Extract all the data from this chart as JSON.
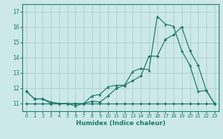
{
  "xlabel": "Humidex (Indice chaleur)",
  "background_color": "#cce8e8",
  "grid_color": "#aacccc",
  "line_color": "#1a7a6a",
  "xlim": [
    -0.5,
    23.5
  ],
  "ylim": [
    10.5,
    17.5
  ],
  "yticks": [
    11,
    12,
    13,
    14,
    15,
    16,
    17
  ],
  "xticks": [
    0,
    1,
    2,
    3,
    4,
    5,
    6,
    7,
    8,
    9,
    10,
    11,
    12,
    13,
    14,
    15,
    16,
    17,
    18,
    19,
    20,
    21,
    22,
    23
  ],
  "line1_x": [
    0,
    1,
    2,
    3,
    4,
    5,
    6,
    7,
    8,
    9,
    10,
    11,
    12,
    13,
    14,
    15,
    16,
    17,
    18,
    19,
    20,
    21,
    22,
    23
  ],
  "line1_y": [
    11.8,
    11.3,
    11.3,
    11.0,
    11.0,
    11.0,
    10.85,
    11.0,
    11.5,
    11.6,
    12.1,
    12.2,
    12.2,
    13.1,
    13.3,
    13.2,
    16.7,
    16.2,
    16.05,
    14.45,
    13.5,
    11.8,
    11.85,
    11.0
  ],
  "line2_x": [
    0,
    1,
    2,
    3,
    4,
    5,
    6,
    7,
    8,
    9,
    10,
    11,
    12,
    13,
    14,
    15,
    16,
    17,
    18,
    19,
    20,
    21,
    22,
    23
  ],
  "line2_y": [
    11.8,
    11.3,
    11.3,
    11.1,
    11.0,
    11.0,
    11.0,
    11.0,
    11.15,
    11.1,
    11.5,
    12.0,
    12.2,
    12.5,
    12.8,
    14.1,
    14.1,
    15.2,
    15.5,
    16.0,
    14.45,
    13.5,
    11.85,
    11.0
  ],
  "line3_x": [
    0,
    1,
    2,
    3,
    4,
    5,
    6,
    7,
    8,
    9,
    10,
    11,
    12,
    13,
    14,
    15,
    16,
    17,
    18,
    19,
    20,
    21,
    22,
    23
  ],
  "line3_y": [
    11.0,
    11.0,
    11.0,
    11.0,
    11.0,
    11.0,
    11.0,
    11.0,
    11.0,
    11.0,
    11.0,
    11.0,
    11.0,
    11.0,
    11.0,
    11.0,
    11.0,
    11.0,
    11.0,
    11.0,
    11.0,
    11.0,
    11.0,
    11.0
  ]
}
